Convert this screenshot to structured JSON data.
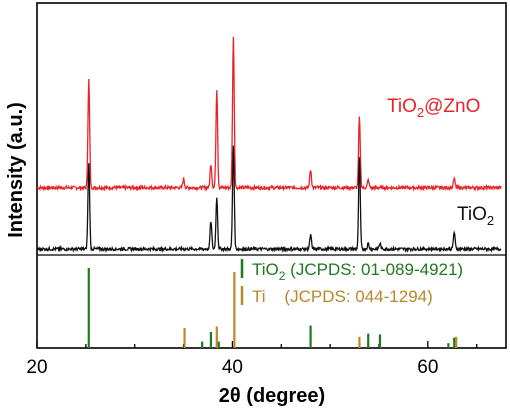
{
  "chart_data": {
    "type": "line",
    "xlabel_main": "2θ (degree)",
    "ylabel": "Intensity (a.u.)",
    "xlim": [
      20,
      68
    ],
    "xticks": [
      20,
      40,
      60
    ],
    "grid": false,
    "colors": {
      "tio2_zno": "#e8242a",
      "tio2": "#111111",
      "ref_tio2": "#1f7a1f",
      "ref_ti": "#b8892a"
    },
    "series": [
      {
        "name_prefix": "TiO",
        "name_sub": "2",
        "name_suffix": "@ZnO",
        "key": "tio2_zno",
        "baseline_rel": 0.54,
        "peaks": [
          {
            "x": 25.3,
            "h": 0.72
          },
          {
            "x": 35.0,
            "h": 0.06
          },
          {
            "x": 37.8,
            "h": 0.16
          },
          {
            "x": 38.4,
            "h": 0.66
          },
          {
            "x": 40.1,
            "h": 1.0
          },
          {
            "x": 48.0,
            "h": 0.12
          },
          {
            "x": 53.0,
            "h": 0.47
          },
          {
            "x": 53.9,
            "h": 0.05
          },
          {
            "x": 62.7,
            "h": 0.06
          }
        ]
      },
      {
        "name_prefix": "TiO",
        "name_sub": "2",
        "name_suffix": "",
        "key": "tio2",
        "baseline_rel": 0.0,
        "peaks": [
          {
            "x": 25.3,
            "h": 0.62
          },
          {
            "x": 37.8,
            "h": 0.2
          },
          {
            "x": 38.4,
            "h": 0.37
          },
          {
            "x": 40.1,
            "h": 0.74
          },
          {
            "x": 48.0,
            "h": 0.1
          },
          {
            "x": 53.0,
            "h": 0.66
          },
          {
            "x": 53.9,
            "h": 0.04
          },
          {
            "x": 55.1,
            "h": 0.04
          },
          {
            "x": 62.7,
            "h": 0.12
          }
        ]
      }
    ],
    "reference_patterns": [
      {
        "label_prefix": "TiO",
        "label_sub": "2",
        "label_suffix": " (JCPDS: 01-089-4921)",
        "key": "ref_tio2",
        "lines": [
          {
            "x": 25.3,
            "h": 1.0
          },
          {
            "x": 36.9,
            "h": 0.08
          },
          {
            "x": 37.8,
            "h": 0.2
          },
          {
            "x": 38.6,
            "h": 0.08
          },
          {
            "x": 48.0,
            "h": 0.28
          },
          {
            "x": 53.9,
            "h": 0.18
          },
          {
            "x": 55.1,
            "h": 0.17
          },
          {
            "x": 62.1,
            "h": 0.06
          },
          {
            "x": 62.7,
            "h": 0.13
          }
        ]
      },
      {
        "label_prefix": "Ti",
        "label_sub": "",
        "label_suffix": "    (JCPDS: 044-1294)",
        "key": "ref_ti",
        "lines": [
          {
            "x": 35.1,
            "h": 0.25
          },
          {
            "x": 38.4,
            "h": 0.27
          },
          {
            "x": 40.2,
            "h": 0.95
          },
          {
            "x": 53.0,
            "h": 0.14
          },
          {
            "x": 62.9,
            "h": 0.14
          }
        ]
      }
    ]
  }
}
